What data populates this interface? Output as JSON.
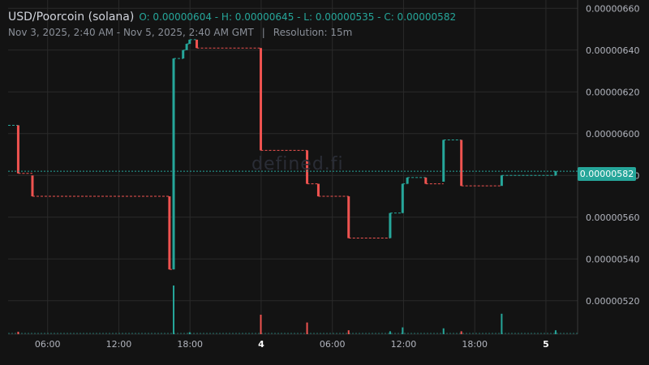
{
  "header": {
    "symbol": "USD/Poorcoin (solana)",
    "ohlc": "O: 0.00000604 - H: 0.00000645 - L: 0.00000535 - C: 0.00000582",
    "range": "Nov 3, 2025, 2:40 AM - Nov 5, 2025, 2:40 AM GMT",
    "separator": "|",
    "resolution": "Resolution: 15m"
  },
  "watermark": "defined.fi",
  "last_price_label": "0.00000582",
  "colors": {
    "up": "#26a69a",
    "down": "#ef5350",
    "grid": "#2a2a2a",
    "background": "#131313"
  },
  "chart_data": {
    "type": "candlestick",
    "x_ticks": [
      {
        "label": "06:00",
        "t": 3.33,
        "bold": false
      },
      {
        "label": "12:00",
        "t": 9.33,
        "bold": false
      },
      {
        "label": "18:00",
        "t": 15.33,
        "bold": false
      },
      {
        "label": "4",
        "t": 21.33,
        "bold": true
      },
      {
        "label": "06:00",
        "t": 27.33,
        "bold": false
      },
      {
        "label": "12:00",
        "t": 33.33,
        "bold": false
      },
      {
        "label": "18:00",
        "t": 39.33,
        "bold": false
      },
      {
        "label": "5",
        "t": 45.33,
        "bold": true
      }
    ],
    "x_range_hours": [
      0,
      48
    ],
    "y_ticks": [
      "0.00000660",
      "0.00000640",
      "0.00000620",
      "0.00000600",
      "0.00000580",
      "0.00000560",
      "0.00000540",
      "0.00000520"
    ],
    "y_range": [
      5.04e-06,
      6.64e-06
    ],
    "last_price": 5.82e-06,
    "candles": [
      {
        "t": 0.85,
        "o": 6.04e-06,
        "c": 5.81e-06
      },
      {
        "t": 2.05,
        "o": 5.8e-06,
        "c": 5.7e-06
      },
      {
        "t": 13.6,
        "o": 5.7e-06,
        "c": 5.35e-06
      },
      {
        "t": 13.95,
        "o": 5.35e-06,
        "c": 6.36e-06
      },
      {
        "t": 14.75,
        "o": 6.36e-06,
        "c": 6.4e-06
      },
      {
        "t": 15.05,
        "o": 6.4e-06,
        "c": 6.43e-06
      },
      {
        "t": 15.3,
        "o": 6.43e-06,
        "c": 6.45e-06
      },
      {
        "t": 15.9,
        "o": 6.45e-06,
        "c": 6.41e-06
      },
      {
        "t": 21.3,
        "o": 6.41e-06,
        "c": 5.92e-06
      },
      {
        "t": 25.2,
        "o": 5.92e-06,
        "c": 5.76e-06
      },
      {
        "t": 26.15,
        "o": 5.76e-06,
        "c": 5.7e-06
      },
      {
        "t": 28.7,
        "o": 5.7e-06,
        "c": 5.5e-06
      },
      {
        "t": 32.2,
        "o": 5.5e-06,
        "c": 5.62e-06
      },
      {
        "t": 33.25,
        "o": 5.62e-06,
        "c": 5.76e-06
      },
      {
        "t": 33.65,
        "o": 5.76e-06,
        "c": 5.79e-06
      },
      {
        "t": 35.2,
        "o": 5.79e-06,
        "c": 5.76e-06
      },
      {
        "t": 36.7,
        "o": 5.77e-06,
        "c": 5.97e-06
      },
      {
        "t": 38.2,
        "o": 5.97e-06,
        "c": 5.75e-06
      },
      {
        "t": 41.6,
        "o": 5.75e-06,
        "c": 5.8e-06
      },
      {
        "t": 46.15,
        "o": 5.8e-06,
        "c": 5.82e-06
      }
    ],
    "volume": [
      {
        "t": 0.85,
        "v": 0.05,
        "up": false
      },
      {
        "t": 13.95,
        "v": 1.0,
        "up": true
      },
      {
        "t": 15.3,
        "v": 0.04,
        "up": true
      },
      {
        "t": 21.3,
        "v": 0.4,
        "up": false
      },
      {
        "t": 25.2,
        "v": 0.24,
        "up": false
      },
      {
        "t": 28.7,
        "v": 0.08,
        "up": false
      },
      {
        "t": 32.2,
        "v": 0.06,
        "up": true
      },
      {
        "t": 33.25,
        "v": 0.14,
        "up": true
      },
      {
        "t": 36.7,
        "v": 0.12,
        "up": true
      },
      {
        "t": 38.2,
        "v": 0.06,
        "up": false
      },
      {
        "t": 41.6,
        "v": 0.42,
        "up": true
      },
      {
        "t": 46.15,
        "v": 0.08,
        "up": true
      }
    ]
  }
}
